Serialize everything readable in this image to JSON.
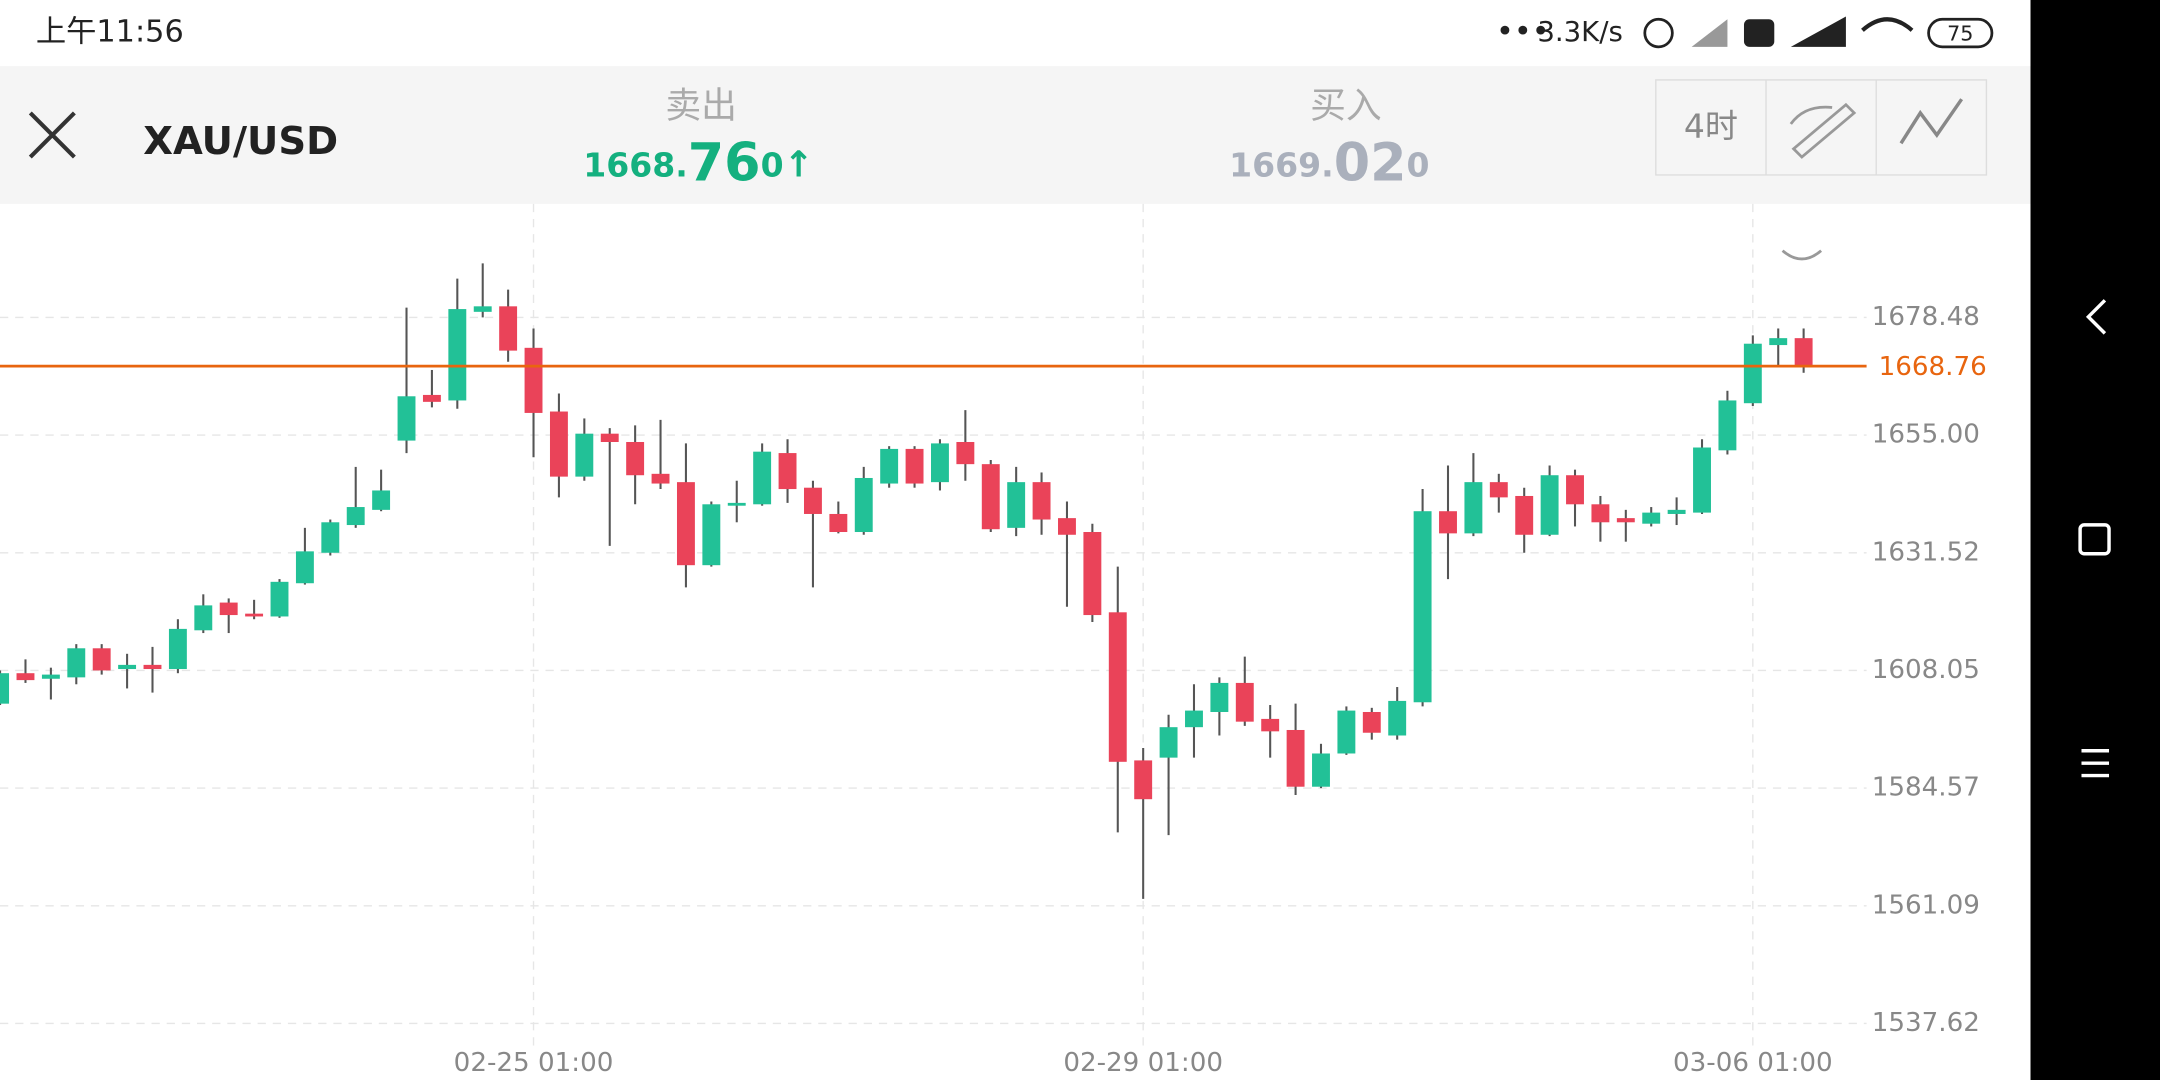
{
  "status_bar": {
    "time": "上午11:56",
    "speed": "3.3K/s",
    "battery": "75"
  },
  "header": {
    "symbol": "XAU/USD",
    "sell": {
      "label": "卖出",
      "price_main": "1668.",
      "price_big": "76",
      "price_small": "0"
    },
    "buy": {
      "label": "买入",
      "price_main": "1669.",
      "price_big": "02",
      "price_small": "0"
    },
    "period": "4时"
  },
  "chart_data": {
    "type": "candlestick",
    "categories": [
      null,
      null,
      null,
      null,
      null,
      null,
      null,
      null,
      null,
      null,
      null,
      null,
      null,
      null,
      null,
      null,
      null,
      null,
      null,
      null,
      null,
      "02-25 01:00",
      null,
      null,
      null,
      null,
      null,
      null,
      null,
      null,
      null,
      null,
      null,
      null,
      null,
      null,
      null,
      null,
      null,
      null,
      null,
      null,
      null,
      null,
      null,
      "02-29 01:00",
      null,
      null,
      null,
      null,
      null,
      null,
      null,
      null,
      null,
      null,
      null,
      null,
      null,
      null,
      null,
      null,
      null,
      null,
      null,
      null,
      null,
      null,
      null,
      "03-06 01:00",
      null,
      null
    ],
    "open": [
      1601.41,
      1607.49,
      1606.38,
      1606.66,
      1612.46,
      1608.32,
      1609.15,
      1608.32,
      1616.05,
      1621.58,
      1619.37,
      1618.81,
      1625.44,
      1631.52,
      1637.05,
      1640.08,
      1653.9,
      1663.01,
      1661.91,
      1679.59,
      1680.69,
      1672.41,
      1659.7,
      1646.71,
      1655.28,
      1653.62,
      1647.27,
      1645.61,
      1629.04,
      1640.91,
      1641.19,
      1651.41,
      1644.5,
      1639.26,
      1635.66,
      1645.33,
      1652.24,
      1645.61,
      1653.62,
      1649.2,
      1636.49,
      1645.61,
      1638.43,
      1635.66,
      1619.64,
      1590.09,
      1590.64,
      1596.72,
      1599.75,
      1605.55,
      1598.37,
      1596.16,
      1584.84,
      1591.47,
      1599.75,
      1595.06,
      1601.69,
      1639.81,
      1635.39,
      1645.61,
      1642.85,
      1635.11,
      1646.99,
      1641.19,
      1638.43,
      1637.32,
      1639.26,
      1639.53,
      1651.96,
      1661.36,
      1672.96,
      1674.34
    ],
    "high": [
      1608.04,
      1610.25,
      1608.59,
      1613.29,
      1613.29,
      1611.36,
      1612.74,
      1618.26,
      1623.23,
      1622.41,
      1622.13,
      1626.27,
      1636.49,
      1638.15,
      1648.65,
      1648.1,
      1680.42,
      1667.99,
      1686.22,
      1689.26,
      1684.01,
      1676.27,
      1663.29,
      1658.32,
      1656.38,
      1656.94,
      1658.04,
      1653.34,
      1641.74,
      1645.89,
      1653.34,
      1654.17,
      1645.89,
      1641.74,
      1648.65,
      1652.79,
      1652.79,
      1654.17,
      1659.97,
      1650.03,
      1648.65,
      1647.54,
      1641.74,
      1637.32,
      1628.76,
      1592.57,
      1599.2,
      1605.28,
      1606.66,
      1610.8,
      1601.14,
      1601.41,
      1593.4,
      1600.86,
      1600.58,
      1604.73,
      1644.23,
      1648.92,
      1651.41,
      1647.27,
      1644.5,
      1648.92,
      1648.1,
      1642.85,
      1640.08,
      1640.64,
      1642.57,
      1654.17,
      1663.84,
      1674.89,
      1676.27,
      1676.27
    ],
    "low": [
      1601.14,
      1605.55,
      1602.24,
      1605.28,
      1607.21,
      1604.45,
      1603.62,
      1607.49,
      1615.5,
      1615.5,
      1618.26,
      1618.54,
      1625.17,
      1630.97,
      1636.49,
      1639.81,
      1651.41,
      1660.53,
      1660.25,
      1678.48,
      1669.64,
      1650.58,
      1642.57,
      1645.89,
      1632.9,
      1641.19,
      1644.23,
      1624.62,
      1628.76,
      1637.6,
      1640.91,
      1641.47,
      1624.62,
      1635.39,
      1635.11,
      1644.5,
      1644.5,
      1643.95,
      1645.89,
      1635.66,
      1634.84,
      1635.11,
      1620.75,
      1617.71,
      1575.72,
      1562.46,
      1575.17,
      1590.64,
      1595.06,
      1596.99,
      1590.64,
      1583.18,
      1584.56,
      1591.19,
      1594.23,
      1594.23,
      1600.86,
      1626.27,
      1634.84,
      1639.53,
      1631.52,
      1634.84,
      1636.77,
      1633.73,
      1633.73,
      1636.77,
      1637.05,
      1639.26,
      1651.13,
      1660.8,
      1668.54,
      1667.43
    ],
    "close": [
      1607.49,
      1606.11,
      1607.21,
      1612.46,
      1608.04,
      1609.15,
      1608.32,
      1616.33,
      1621.02,
      1619.09,
      1618.81,
      1625.72,
      1631.8,
      1637.6,
      1640.64,
      1643.95,
      1662.74,
      1661.63,
      1680.14,
      1680.69,
      1671.85,
      1659.42,
      1646.71,
      1655.28,
      1653.62,
      1646.99,
      1645.33,
      1629.04,
      1641.19,
      1641.47,
      1651.69,
      1644.23,
      1639.26,
      1635.66,
      1646.44,
      1652.24,
      1645.33,
      1653.34,
      1649.2,
      1636.22,
      1645.61,
      1638.15,
      1635.11,
      1619.09,
      1589.81,
      1582.35,
      1596.72,
      1600.03,
      1605.55,
      1597.82,
      1595.89,
      1584.84,
      1591.47,
      1600.03,
      1595.61,
      1601.96,
      1639.81,
      1635.39,
      1645.61,
      1642.57,
      1635.11,
      1646.99,
      1641.19,
      1637.6,
      1637.6,
      1639.53,
      1640.08,
      1652.52,
      1661.91,
      1673.23,
      1674.34,
      1668.54
    ],
    "up_color": "#22c197",
    "down_color": "#ea4359",
    "ylim": [
      1532.92,
      1701.13
    ],
    "yticks": [
      {
        "value": 1537.62,
        "label": "1537.62"
      },
      1561.09,
      1584.57,
      1608.05,
      1631.52,
      {
        "value": 1655,
        "label": "1655.00"
      },
      1678.48
    ],
    "grid": true,
    "price_line": {
      "value": 1668.76,
      "color": "#e8650f"
    }
  }
}
